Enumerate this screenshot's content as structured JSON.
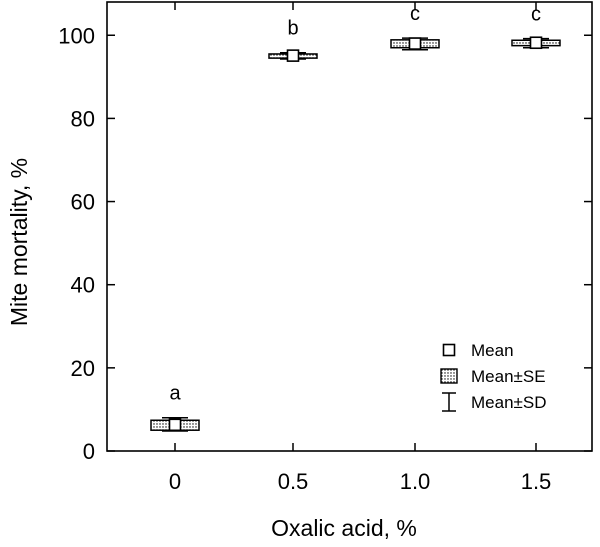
{
  "chart_data": {
    "type": "box",
    "xlabel": "Oxalic acid, %",
    "ylabel": "Mite mortality, %",
    "categories": [
      "0",
      "0.5",
      "1.0",
      "1.5"
    ],
    "ylim": [
      0,
      108
    ],
    "yticks": [
      0,
      20,
      40,
      60,
      80,
      100
    ],
    "series": [
      {
        "category": "0",
        "mean": 6.3,
        "se_low": 5.0,
        "se_high": 7.4,
        "sd_low": 4.8,
        "sd_high": 8.0,
        "letter": "a"
      },
      {
        "category": "0.5",
        "mean": 95.1,
        "se_low": 94.5,
        "se_high": 95.5,
        "sd_low": 94.3,
        "sd_high": 95.8,
        "letter": "b"
      },
      {
        "category": "1.0",
        "mean": 98.0,
        "se_low": 97.0,
        "se_high": 98.9,
        "sd_low": 96.5,
        "sd_high": 99.3,
        "letter": "c"
      },
      {
        "category": "1.5",
        "mean": 98.2,
        "se_low": 97.5,
        "se_high": 98.8,
        "sd_low": 97.0,
        "sd_high": 99.2,
        "letter": "c"
      }
    ],
    "legend": {
      "position": "bottom-right",
      "items": [
        {
          "symbol": "mean",
          "label": "Mean"
        },
        {
          "symbol": "se",
          "label": "Mean±SE"
        },
        {
          "symbol": "sd",
          "label": "Mean±SD"
        }
      ]
    }
  }
}
